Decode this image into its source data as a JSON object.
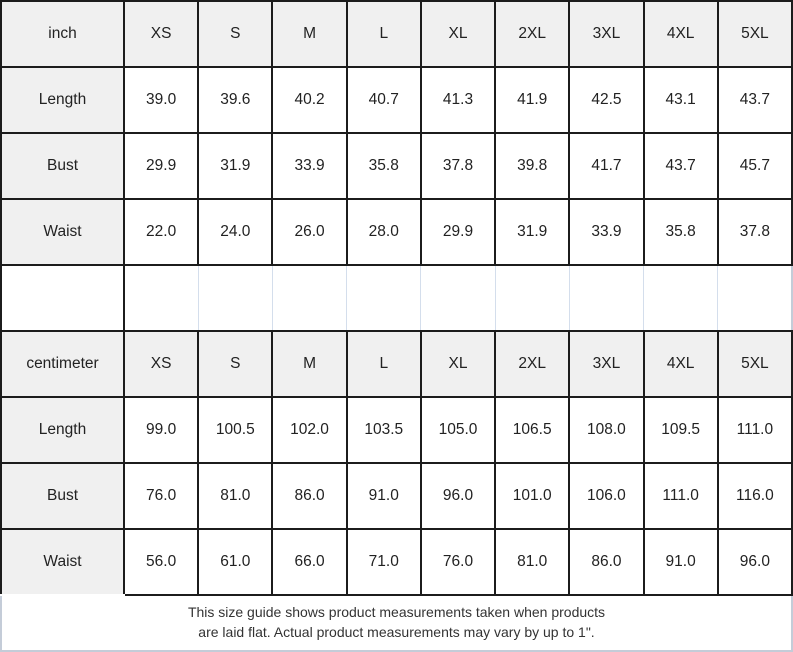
{
  "tables": [
    {
      "unit": "inch",
      "sizes": [
        "XS",
        "S",
        "M",
        "L",
        "XL",
        "2XL",
        "3XL",
        "4XL",
        "5XL"
      ],
      "rows": [
        {
          "label": "Length",
          "values": [
            "39.0",
            "39.6",
            "40.2",
            "40.7",
            "41.3",
            "41.9",
            "42.5",
            "43.1",
            "43.7"
          ]
        },
        {
          "label": "Bust",
          "values": [
            "29.9",
            "31.9",
            "33.9",
            "35.8",
            "37.8",
            "39.8",
            "41.7",
            "43.7",
            "45.7"
          ]
        },
        {
          "label": "Waist",
          "values": [
            "22.0",
            "24.0",
            "26.0",
            "28.0",
            "29.9",
            "31.9",
            "33.9",
            "35.8",
            "37.8"
          ]
        }
      ]
    },
    {
      "unit": "centimeter",
      "sizes": [
        "XS",
        "S",
        "M",
        "L",
        "XL",
        "2XL",
        "3XL",
        "4XL",
        "5XL"
      ],
      "rows": [
        {
          "label": "Length",
          "values": [
            "99.0",
            "100.5",
            "102.0",
            "103.5",
            "105.0",
            "106.5",
            "108.0",
            "109.5",
            "111.0"
          ]
        },
        {
          "label": "Bust",
          "values": [
            "76.0",
            "81.0",
            "86.0",
            "91.0",
            "96.0",
            "101.0",
            "106.0",
            "111.0",
            "116.0"
          ]
        },
        {
          "label": "Waist",
          "values": [
            "56.0",
            "61.0",
            "66.0",
            "71.0",
            "76.0",
            "81.0",
            "86.0",
            "91.0",
            "96.0"
          ]
        }
      ]
    }
  ],
  "footer": {
    "line1": "This size guide shows product measurements taken when products",
    "line2": "are laid flat. Actual product measurements may vary by up to 1\"."
  },
  "colors": {
    "grid_border": "#1c1c1c",
    "header_bg": "#f0f0f0",
    "separator_line": "#d4deec",
    "frame_border": "#c4ccd8",
    "cell_text": "#222222",
    "note_text": "#333333"
  }
}
